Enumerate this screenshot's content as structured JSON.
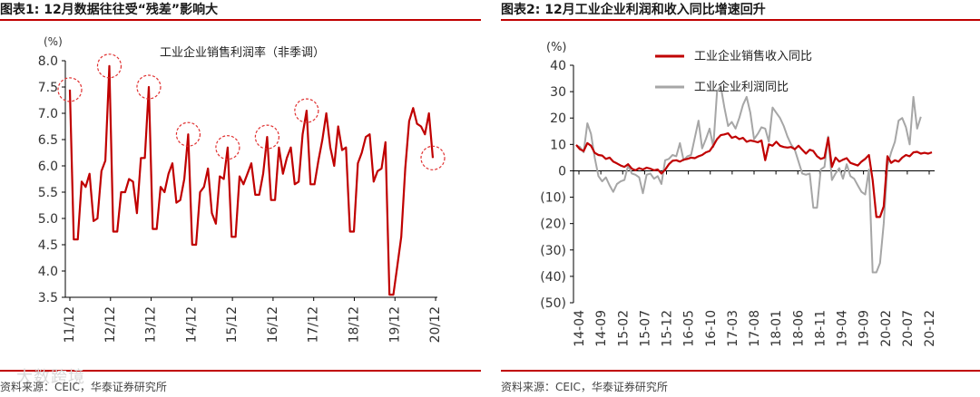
{
  "left": {
    "title": "图表1:  12月数据往往受“残差”影响大",
    "source": "资料来源：CEIC，华泰证券研究所",
    "watermark": "大数跨境"
  },
  "right": {
    "title": "图表2:  12月工业企业利润和收入同比增速回升",
    "source": "资料来源：CEIC，华泰证券研究所"
  },
  "colors": {
    "accent": "#c00000",
    "series_red": "#c00000",
    "series_gray": "#a6a6a6",
    "circle": "#e03030"
  },
  "chart_data": [
    {
      "type": "line",
      "title": "",
      "unit_label": "(%)",
      "legend_label": "工业企业销售利润率（非季调）",
      "legend_placement": "top-center",
      "ylim": [
        3.5,
        8.0
      ],
      "yticks": [
        "3.5",
        "4.0",
        "4.5",
        "5.0",
        "5.5",
        "6.0",
        "6.5",
        "7.0",
        "7.5",
        "8.0"
      ],
      "xtick_labels": [
        "11/12",
        "12/12",
        "13/12",
        "14/12",
        "15/12",
        "16/12",
        "17/12",
        "18/12",
        "19/12",
        "20/12"
      ],
      "grid": false,
      "series": [
        {
          "name": "工业企业销售利润率（非季调）",
          "values": [
            7.45,
            4.6,
            4.6,
            5.7,
            5.6,
            5.85,
            4.95,
            5.0,
            5.9,
            6.1,
            7.9,
            4.75,
            4.75,
            5.5,
            5.5,
            5.75,
            5.7,
            5.1,
            6.15,
            6.15,
            7.5,
            4.8,
            4.8,
            5.6,
            5.5,
            5.85,
            6.05,
            5.3,
            5.35,
            5.75,
            6.6,
            4.5,
            4.5,
            5.5,
            5.6,
            5.95,
            5.1,
            4.9,
            5.8,
            5.75,
            6.35,
            4.65,
            4.65,
            5.8,
            5.65,
            5.85,
            6.05,
            5.45,
            5.45,
            5.85,
            6.55,
            5.35,
            5.35,
            6.35,
            5.85,
            6.15,
            6.35,
            5.65,
            5.7,
            6.6,
            7.05,
            5.65,
            5.65,
            6.1,
            6.5,
            7.0,
            6.35,
            6.0,
            6.75,
            6.3,
            6.35,
            4.75,
            4.75,
            6.05,
            6.25,
            6.55,
            6.6,
            5.7,
            5.9,
            5.95,
            6.45,
            3.55,
            3.55,
            4.1,
            4.65,
            5.95,
            6.85,
            7.1,
            6.8,
            6.75,
            6.6,
            7.0,
            6.15
          ],
          "circled_points": [
            7.45,
            7.9,
            7.5,
            6.6,
            6.35,
            6.55,
            7.05,
            6.15
          ]
        }
      ]
    },
    {
      "type": "line",
      "title": "",
      "unit_label": "(%)",
      "ylim": [
        -50,
        40
      ],
      "yticks": [
        "(50)",
        "(40)",
        "(30)",
        "(20)",
        "(10)",
        "0",
        "10",
        "20",
        "30",
        "40"
      ],
      "xtick_labels": [
        "14-04",
        "14-09",
        "15-02",
        "15-07",
        "15-12",
        "16-05",
        "16-10",
        "17-03",
        "17-08",
        "18-01",
        "18-06",
        "18-11",
        "19-04",
        "19-09",
        "20-02",
        "20-07",
        "20-12"
      ],
      "grid": false,
      "legend_placement": "top-center",
      "series": [
        {
          "name": "工业企业销售收入同比",
          "values": [
            9.8,
            8.2,
            7.5,
            10.5,
            9.5,
            6.8,
            6.0,
            5.8,
            4.5,
            5.0,
            3.5,
            2.8,
            2.0,
            1.5,
            2.5,
            0.8,
            0.2,
            1.0,
            0.5,
            1.2,
            0.8,
            0.2,
            0.5,
            -1.0,
            0.4,
            2.5,
            3.8,
            4.0,
            3.5,
            4.2,
            4.5,
            5.0,
            4.8,
            5.5,
            6.0,
            7.0,
            7.5,
            9.5,
            12.0,
            13.5,
            13.8,
            14.2,
            12.5,
            13.0,
            12.0,
            12.5,
            11.0,
            11.5,
            11.2,
            10.8,
            11.5,
            4.0,
            10.0,
            9.5,
            11.0,
            9.5,
            9.0,
            8.8,
            9.0,
            8.2,
            9.5,
            8.0,
            6.5,
            8.0,
            7.5,
            5.5,
            4.5,
            5.0,
            12.5,
            1.5,
            5.0,
            3.5,
            4.2,
            4.8,
            3.0,
            2.5,
            2.0,
            3.5,
            4.5,
            6.0,
            -3.5,
            -17.5,
            -17.5,
            -13.5,
            5.5,
            3.0,
            4.0,
            3.5,
            5.0,
            6.0,
            5.5,
            7.0,
            7.2,
            6.5,
            6.8,
            6.5,
            7.0
          ]
        },
        {
          "name": "工业企业利润同比",
          "values": [
            9.6,
            9.0,
            7.0,
            18.0,
            14.0,
            5.0,
            -2.0,
            -4.0,
            -2.5,
            -5.5,
            -8.0,
            -5.0,
            -4.0,
            -3.5,
            2.0,
            -1.0,
            -1.5,
            -2.5,
            -8.5,
            -1.5,
            -1.0,
            -3.0,
            -2.0,
            -5.0,
            4.0,
            4.5,
            6.0,
            5.5,
            10.5,
            4.0,
            5.5,
            6.0,
            12.5,
            19.0,
            8.5,
            12.0,
            16.0,
            9.0,
            30.0,
            32.0,
            24.0,
            17.0,
            18.5,
            16.0,
            20.0,
            25.0,
            28.0,
            22.0,
            12.0,
            14.0,
            16.5,
            16.0,
            11.0,
            24.0,
            22.0,
            20.0,
            17.0,
            13.0,
            10.0,
            8.0,
            3.5,
            -1.0,
            -1.5,
            -1.0,
            -14.0,
            -14.0,
            0.5,
            1.5,
            13.0,
            -3.5,
            -1.0,
            1.0,
            -3.0,
            2.5,
            -2.0,
            -3.0,
            -5.5,
            -8.0,
            -9.0,
            0.5,
            -38.5,
            -38.5,
            -35.0,
            -20.0,
            2.0,
            7.0,
            11.0,
            19.0,
            20.0,
            16.5,
            10.0,
            28.0,
            16.0,
            20.5
          ]
        }
      ]
    }
  ]
}
